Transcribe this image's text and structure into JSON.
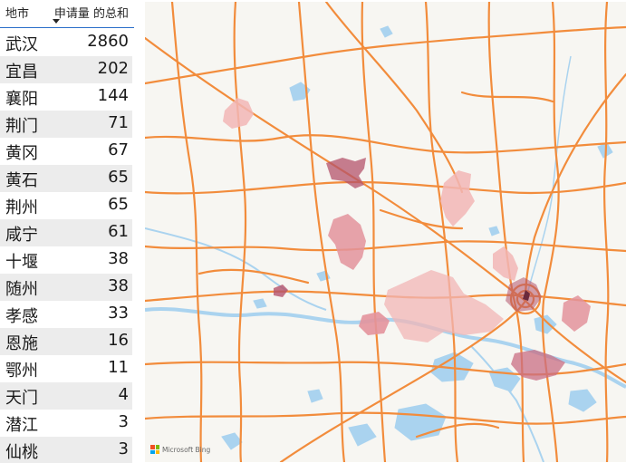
{
  "table": {
    "header_city": "地市",
    "header_sum": "申请量 的总和",
    "rows": [
      {
        "city": "武汉",
        "value": "2860"
      },
      {
        "city": "宜昌",
        "value": "202"
      },
      {
        "city": "襄阳",
        "value": "144"
      },
      {
        "city": "荆门",
        "value": "71"
      },
      {
        "city": "黄冈",
        "value": "67"
      },
      {
        "city": "黄石",
        "value": "65"
      },
      {
        "city": "荆州",
        "value": "65"
      },
      {
        "city": "咸宁",
        "value": "61"
      },
      {
        "city": "十堰",
        "value": "38"
      },
      {
        "city": "随州",
        "value": "38"
      },
      {
        "city": "孝感",
        "value": "33"
      },
      {
        "city": "恩施",
        "value": "16"
      },
      {
        "city": "鄂州",
        "value": "11"
      },
      {
        "city": "天门",
        "value": "4"
      },
      {
        "city": "潜江",
        "value": "3"
      },
      {
        "city": "仙桃",
        "value": "3"
      }
    ]
  },
  "map": {
    "attribution": "Microsoft Bing",
    "colors": {
      "background": "#f7f6f2",
      "road": "#f28c3c",
      "water": "#aad3ef",
      "region_light": "#f2b6b6",
      "region_mid": "#e3939c",
      "region_dark": "#b4536b"
    }
  }
}
